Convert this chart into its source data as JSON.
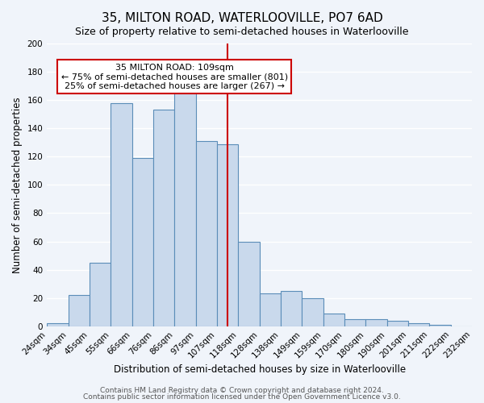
{
  "title": "35, MILTON ROAD, WATERLOOVILLE, PO7 6AD",
  "subtitle": "Size of property relative to semi-detached houses in Waterlooville",
  "xlabel": "Distribution of semi-detached houses by size in Waterlooville",
  "ylabel": "Number of semi-detached properties",
  "bin_labels": [
    "24sqm",
    "34sqm",
    "45sqm",
    "55sqm",
    "66sqm",
    "76sqm",
    "86sqm",
    "97sqm",
    "107sqm",
    "118sqm",
    "128sqm",
    "138sqm",
    "149sqm",
    "159sqm",
    "170sqm",
    "180sqm",
    "190sqm",
    "201sqm",
    "211sqm",
    "222sqm",
    "232sqm"
  ],
  "bar_values": [
    2,
    22,
    45,
    158,
    119,
    153,
    165,
    131,
    129,
    60,
    23,
    25,
    20,
    9,
    5,
    5,
    4,
    2,
    1,
    0
  ],
  "bar_color": "#c9d9ec",
  "bar_edge_color": "#5b8db8",
  "ylim": [
    0,
    200
  ],
  "yticks": [
    0,
    20,
    40,
    60,
    80,
    100,
    120,
    140,
    160,
    180,
    200
  ],
  "property_label": "35 MILTON ROAD: 109sqm",
  "annotation_line1": "← 75% of semi-detached houses are smaller (801)",
  "annotation_line2": "25% of semi-detached houses are larger (267) →",
  "vline_position": 8.5,
  "vline_color": "#cc0000",
  "annotation_box_edge": "#cc0000",
  "footer1": "Contains HM Land Registry data © Crown copyright and database right 2024.",
  "footer2": "Contains public sector information licensed under the Open Government Licence v3.0.",
  "background_color": "#f0f4fa",
  "grid_color": "#ffffff",
  "title_fontsize": 11,
  "subtitle_fontsize": 9,
  "axis_label_fontsize": 8.5,
  "tick_fontsize": 7.5,
  "annotation_fontsize": 8,
  "footer_fontsize": 6.5
}
